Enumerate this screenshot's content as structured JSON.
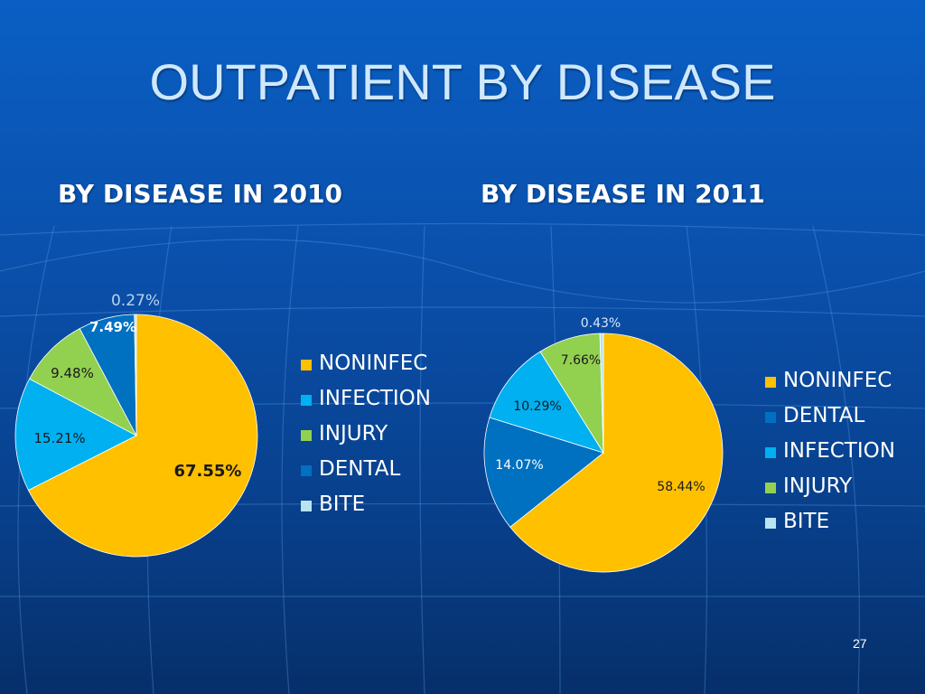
{
  "slide": {
    "title": "OUTPATIENT BY DISEASE",
    "subtitle_2010": "BY DISEASE IN 2010",
    "subtitle_2011": "BY DISEASE IN 2011",
    "page_number": "27",
    "background_color": "#0a4faa"
  },
  "chart_data": [
    {
      "type": "pie",
      "title": "BY DISEASE IN 2010",
      "legend_position": "right",
      "slices": [
        {
          "name": "NONINFEC",
          "value": 67.55,
          "label": "67.55%",
          "color": "#ffc000"
        },
        {
          "name": "INFECTION",
          "value": 15.21,
          "label": "15.21%",
          "color": "#00b0f0"
        },
        {
          "name": "INJURY",
          "value": 9.48,
          "label": "9.48%",
          "color": "#92d050"
        },
        {
          "name": "DENTAL",
          "value": 7.49,
          "label": "7.49%",
          "color": "#0070c0"
        },
        {
          "name": "BITE",
          "value": 0.27,
          "label": "0.27%",
          "color": "#b7e4f0"
        }
      ]
    },
    {
      "type": "pie",
      "title": "BY DISEASE IN 2011",
      "legend_position": "right",
      "slices": [
        {
          "name": "NONINFEC",
          "value": 58.44,
          "label": "58.44%",
          "color": "#ffc000"
        },
        {
          "name": "DENTAL",
          "value": 14.07,
          "label": "14.07%",
          "color": "#0070c0"
        },
        {
          "name": "INFECTION",
          "value": 10.29,
          "label": "10.29%",
          "color": "#00b0f0"
        },
        {
          "name": "INJURY",
          "value": 7.66,
          "label": "7.66%",
          "color": "#92d050"
        },
        {
          "name": "BITE",
          "value": 0.43,
          "label": "0.43%",
          "color": "#b7e4f0"
        }
      ]
    }
  ]
}
